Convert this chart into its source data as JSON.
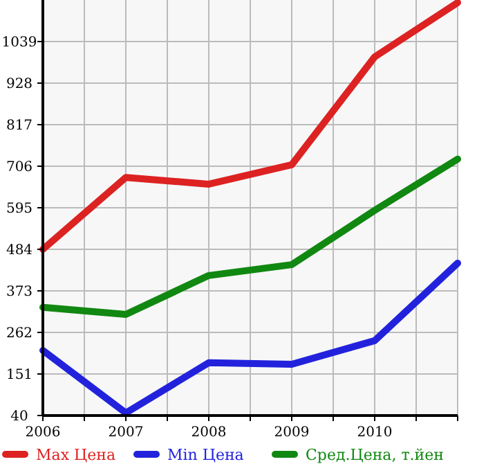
{
  "chart_data": {
    "type": "line",
    "x": [
      2006,
      2007,
      2008,
      2009,
      2010,
      2011
    ],
    "series": [
      {
        "name": "Max Цена",
        "color": "#dd2222",
        "values": [
          484,
          676,
          658,
          710,
          998,
          1143
        ]
      },
      {
        "name": "Min Цена",
        "color": "#2222dd",
        "values": [
          214,
          47,
          181,
          177,
          240,
          447
        ]
      },
      {
        "name": "Сред.Цена, т.йен",
        "color": "#118811",
        "values": [
          329,
          310,
          414,
          443,
          588,
          725
        ]
      }
    ],
    "xlim": [
      2006,
      2011
    ],
    "xticks": [
      2006,
      {
        "value": 2006.5,
        "label": null
      },
      2007,
      {
        "value": 2007.5,
        "label": null
      },
      2008,
      {
        "value": 2008.5,
        "label": null
      },
      2009,
      {
        "value": 2009.5,
        "label": null
      },
      2010,
      {
        "value": 2010.5,
        "label": null
      },
      {
        "value": 2011,
        "label": null
      }
    ],
    "ylim": [
      40,
      1150
    ],
    "yticks": [
      40,
      151,
      262,
      373,
      484,
      595,
      706,
      817,
      928,
      1039
    ],
    "grid": true,
    "legend": "bottom",
    "marker": "none",
    "line_style": "solid"
  }
}
